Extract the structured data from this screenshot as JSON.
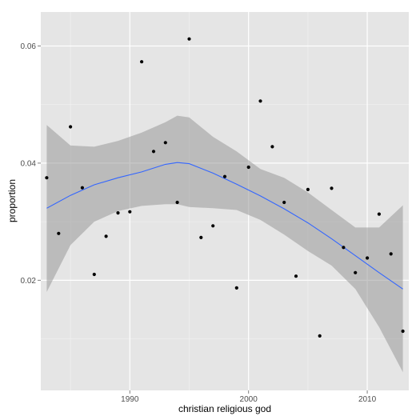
{
  "chart_data": {
    "type": "scatter",
    "title": "",
    "xlabel": "christian religious god",
    "ylabel": "proportion",
    "xlim": [
      1982.5,
      2013.5
    ],
    "ylim": [
      0.0012,
      0.0658
    ],
    "xticks": [
      1990,
      2000,
      2010
    ],
    "yticks": [
      0.02,
      0.04,
      0.06
    ],
    "ytick_labels": [
      "0.02",
      "0.04",
      "0.06"
    ],
    "grid": true,
    "colors": {
      "panel": "#e5e5e5",
      "grid_major": "#ffffff",
      "grid_minor": "#f2f2f2",
      "points": "#000000",
      "smooth_line": "#3366ff",
      "ribbon": "#999999"
    },
    "points": {
      "x": [
        1983,
        1984,
        1985,
        1986,
        1987,
        1988,
        1989,
        1990,
        1991,
        1992,
        1993,
        1994,
        1995,
        1996,
        1997,
        1998,
        1999,
        2000,
        2001,
        2002,
        2003,
        2004,
        2005,
        2006,
        2007,
        2008,
        2009,
        2010,
        2011,
        2012,
        2013
      ],
      "y": [
        0.0375,
        0.028,
        0.0462,
        0.0358,
        0.021,
        0.0275,
        0.0315,
        0.0317,
        0.0573,
        0.042,
        0.0435,
        0.0333,
        0.0612,
        0.0273,
        0.0293,
        0.0377,
        0.0187,
        0.0393,
        0.0506,
        0.0428,
        0.0333,
        0.0207,
        0.0355,
        0.0105,
        0.0357,
        0.0256,
        0.0213,
        0.0238,
        0.0313,
        0.0245,
        0.0113
      ]
    },
    "smooth": {
      "x": [
        1983,
        1985,
        1987,
        1989,
        1991,
        1993,
        1994,
        1995,
        1997,
        1999,
        2001,
        2003,
        2005,
        2007,
        2009,
        2011,
        2013
      ],
      "y": [
        0.0323,
        0.0345,
        0.0363,
        0.0375,
        0.0385,
        0.0398,
        0.0401,
        0.0399,
        0.0383,
        0.0364,
        0.0344,
        0.0322,
        0.0298,
        0.0271,
        0.0242,
        0.0213,
        0.0185
      ],
      "lower": [
        0.018,
        0.026,
        0.03,
        0.0318,
        0.0327,
        0.033,
        0.033,
        0.0325,
        0.0323,
        0.032,
        0.0303,
        0.0278,
        0.025,
        0.0225,
        0.0185,
        0.012,
        0.0043
      ],
      "upper": [
        0.0465,
        0.043,
        0.0428,
        0.0438,
        0.0452,
        0.047,
        0.0481,
        0.0478,
        0.0445,
        0.042,
        0.039,
        0.0375,
        0.035,
        0.032,
        0.029,
        0.029,
        0.0328
      ]
    }
  }
}
